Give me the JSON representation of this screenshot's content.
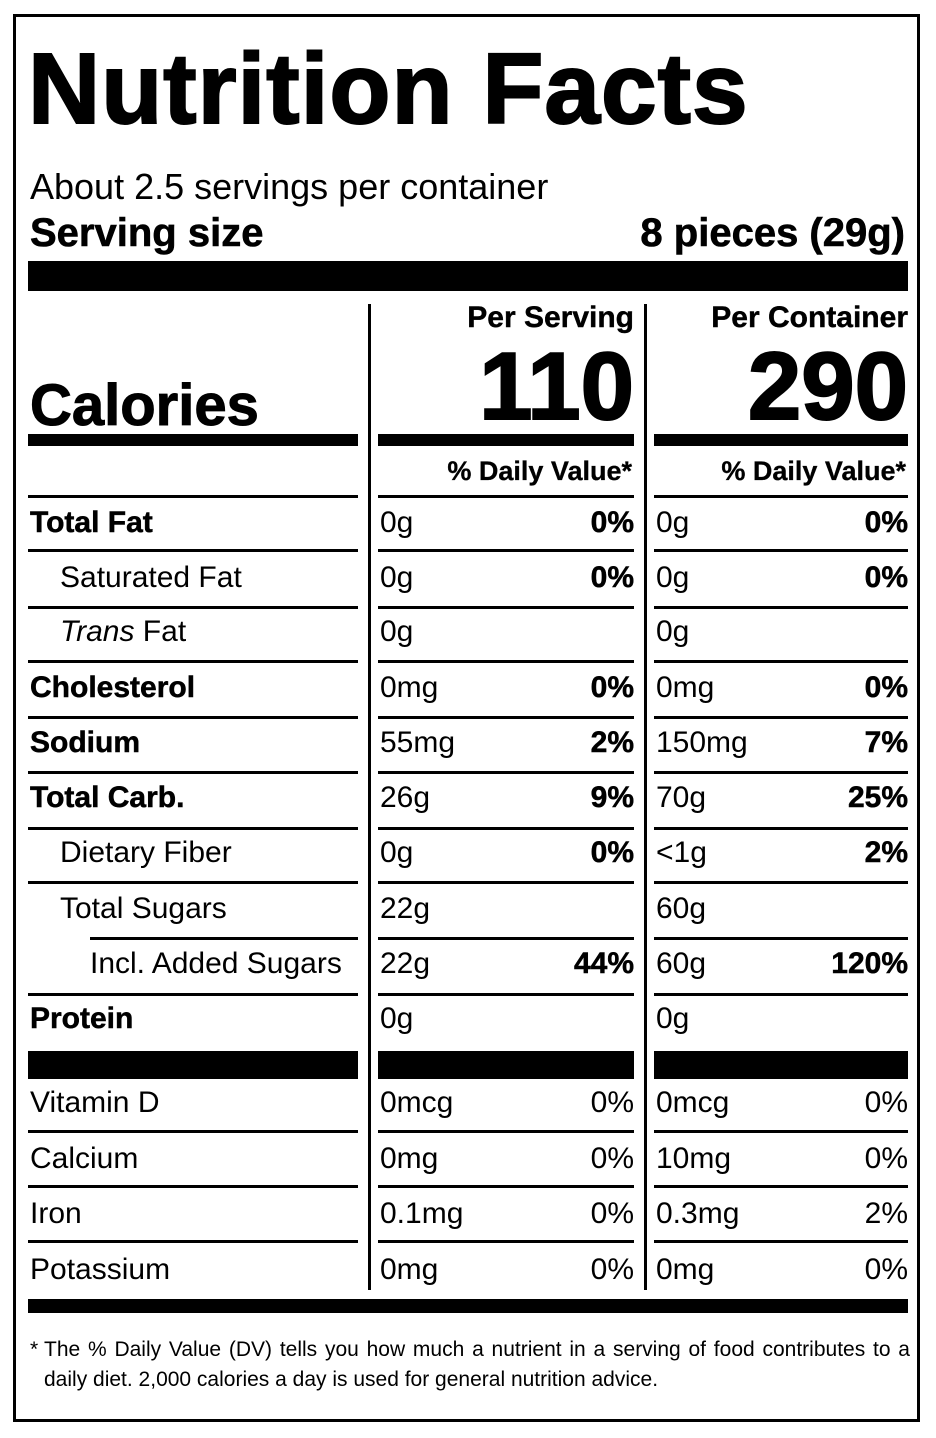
{
  "title": "Nutrition Facts",
  "servings_per_container": "About 2.5 servings per container",
  "serving_size": {
    "label": "Serving size",
    "value": "8 pieces (29g)"
  },
  "columns": {
    "per_serving": {
      "header": "Per Serving",
      "calories": "110",
      "dv_header": "% Daily Value*"
    },
    "per_container": {
      "header": "Per Container",
      "calories": "290",
      "dv_header": "% Daily Value*"
    }
  },
  "calories_label": "Calories",
  "nutrients": [
    {
      "name": "Total Fat",
      "style": "bold",
      "serving_amount": "0g",
      "serving_dv": "0%",
      "container_amount": "0g",
      "container_dv": "0%"
    },
    {
      "name": "Saturated Fat",
      "style": "indent",
      "serving_amount": "0g",
      "serving_dv": "0%",
      "container_amount": "0g",
      "container_dv": "0%"
    },
    {
      "name_italic": "Trans",
      "name": " Fat",
      "style": "indent",
      "serving_amount": "0g",
      "serving_dv": "",
      "container_amount": "0g",
      "container_dv": ""
    },
    {
      "name": "Cholesterol",
      "style": "bold",
      "serving_amount": "0mg",
      "serving_dv": "0%",
      "container_amount": "0mg",
      "container_dv": "0%"
    },
    {
      "name": "Sodium",
      "style": "bold",
      "serving_amount": "55mg",
      "serving_dv": "2%",
      "container_amount": "150mg",
      "container_dv": "7%"
    },
    {
      "name": "Total Carb.",
      "style": "bold",
      "serving_amount": "26g",
      "serving_dv": "9%",
      "container_amount": "70g",
      "container_dv": "25%"
    },
    {
      "name": "Dietary Fiber",
      "style": "indent",
      "serving_amount": "0g",
      "serving_dv": "0%",
      "container_amount": "<1g",
      "container_dv": "2%"
    },
    {
      "name": "Total Sugars",
      "style": "indent",
      "serving_amount": "22g",
      "serving_dv": "",
      "container_amount": "60g",
      "container_dv": ""
    },
    {
      "name": "Incl. Added Sugars",
      "style": "indent2",
      "serving_amount": "22g",
      "serving_dv": "44%",
      "container_amount": "60g",
      "container_dv": "120%"
    },
    {
      "name": "Protein",
      "style": "bold",
      "serving_amount": "0g",
      "serving_dv": "",
      "container_amount": "0g",
      "container_dv": ""
    }
  ],
  "vitamins": [
    {
      "name": "Vitamin D",
      "serving_amount": "0mcg",
      "serving_dv": "0%",
      "container_amount": "0mcg",
      "container_dv": "0%"
    },
    {
      "name": "Calcium",
      "serving_amount": "0mg",
      "serving_dv": "0%",
      "container_amount": "10mg",
      "container_dv": "0%"
    },
    {
      "name": "Iron",
      "serving_amount": "0.1mg",
      "serving_dv": "0%",
      "container_amount": "0.3mg",
      "container_dv": "2%"
    },
    {
      "name": "Potassium",
      "serving_amount": "0mg",
      "serving_dv": "0%",
      "container_amount": "0mg",
      "container_dv": "0%"
    }
  ],
  "footnote": {
    "marker": "*",
    "text": "The % Daily Value (DV) tells you how much a nutrient in a serving of food contributes to a daily diet. 2,000 calories a day is used for general nutrition advice."
  }
}
